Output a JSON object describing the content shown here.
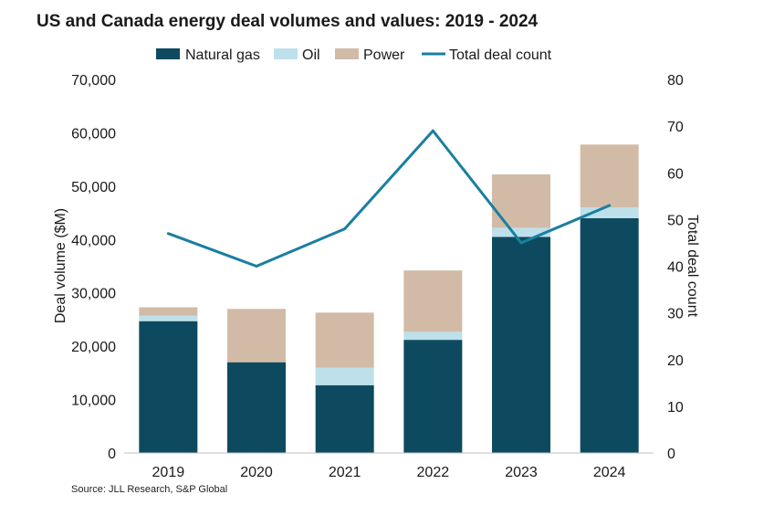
{
  "title": "US and Canada energy deal volumes and values: 2019 - 2024",
  "source": "Source: JLL Research, S&P Global",
  "colors": {
    "natural_gas": "#0d4a5f",
    "oil": "#bde0ea",
    "power": "#d2bba6",
    "total_deal_count": "#1a7fa0"
  },
  "chart_data": {
    "type": "bar",
    "stacked": true,
    "categories": [
      "2019",
      "2020",
      "2021",
      "2022",
      "2023",
      "2024"
    ],
    "series": [
      {
        "name": "Natural gas",
        "kind": "bar",
        "axis": "left",
        "values": [
          24700,
          17000,
          12700,
          21200,
          40500,
          44000
        ]
      },
      {
        "name": "Oil",
        "kind": "bar",
        "axis": "left",
        "values": [
          1000,
          0,
          3300,
          1500,
          1700,
          2000
        ]
      },
      {
        "name": "Power",
        "kind": "bar",
        "axis": "left",
        "values": [
          1600,
          10000,
          10300,
          11500,
          10000,
          11800
        ]
      },
      {
        "name": "Total deal count",
        "kind": "line",
        "axis": "right",
        "values": [
          47,
          40,
          48,
          69,
          45,
          53
        ]
      }
    ],
    "ylabel": "Deal volume ($M)",
    "y2label": "Total deal count",
    "ylim": [
      0,
      70000
    ],
    "y2lim": [
      0,
      80
    ],
    "yticks": [
      "0",
      "10,000",
      "20,000",
      "30,000",
      "40,000",
      "50,000",
      "60,000",
      "70,000"
    ],
    "y2ticks": [
      "0",
      "10",
      "20",
      "30",
      "40",
      "50",
      "60",
      "70",
      "80"
    ],
    "grid": false,
    "legend": "top"
  }
}
